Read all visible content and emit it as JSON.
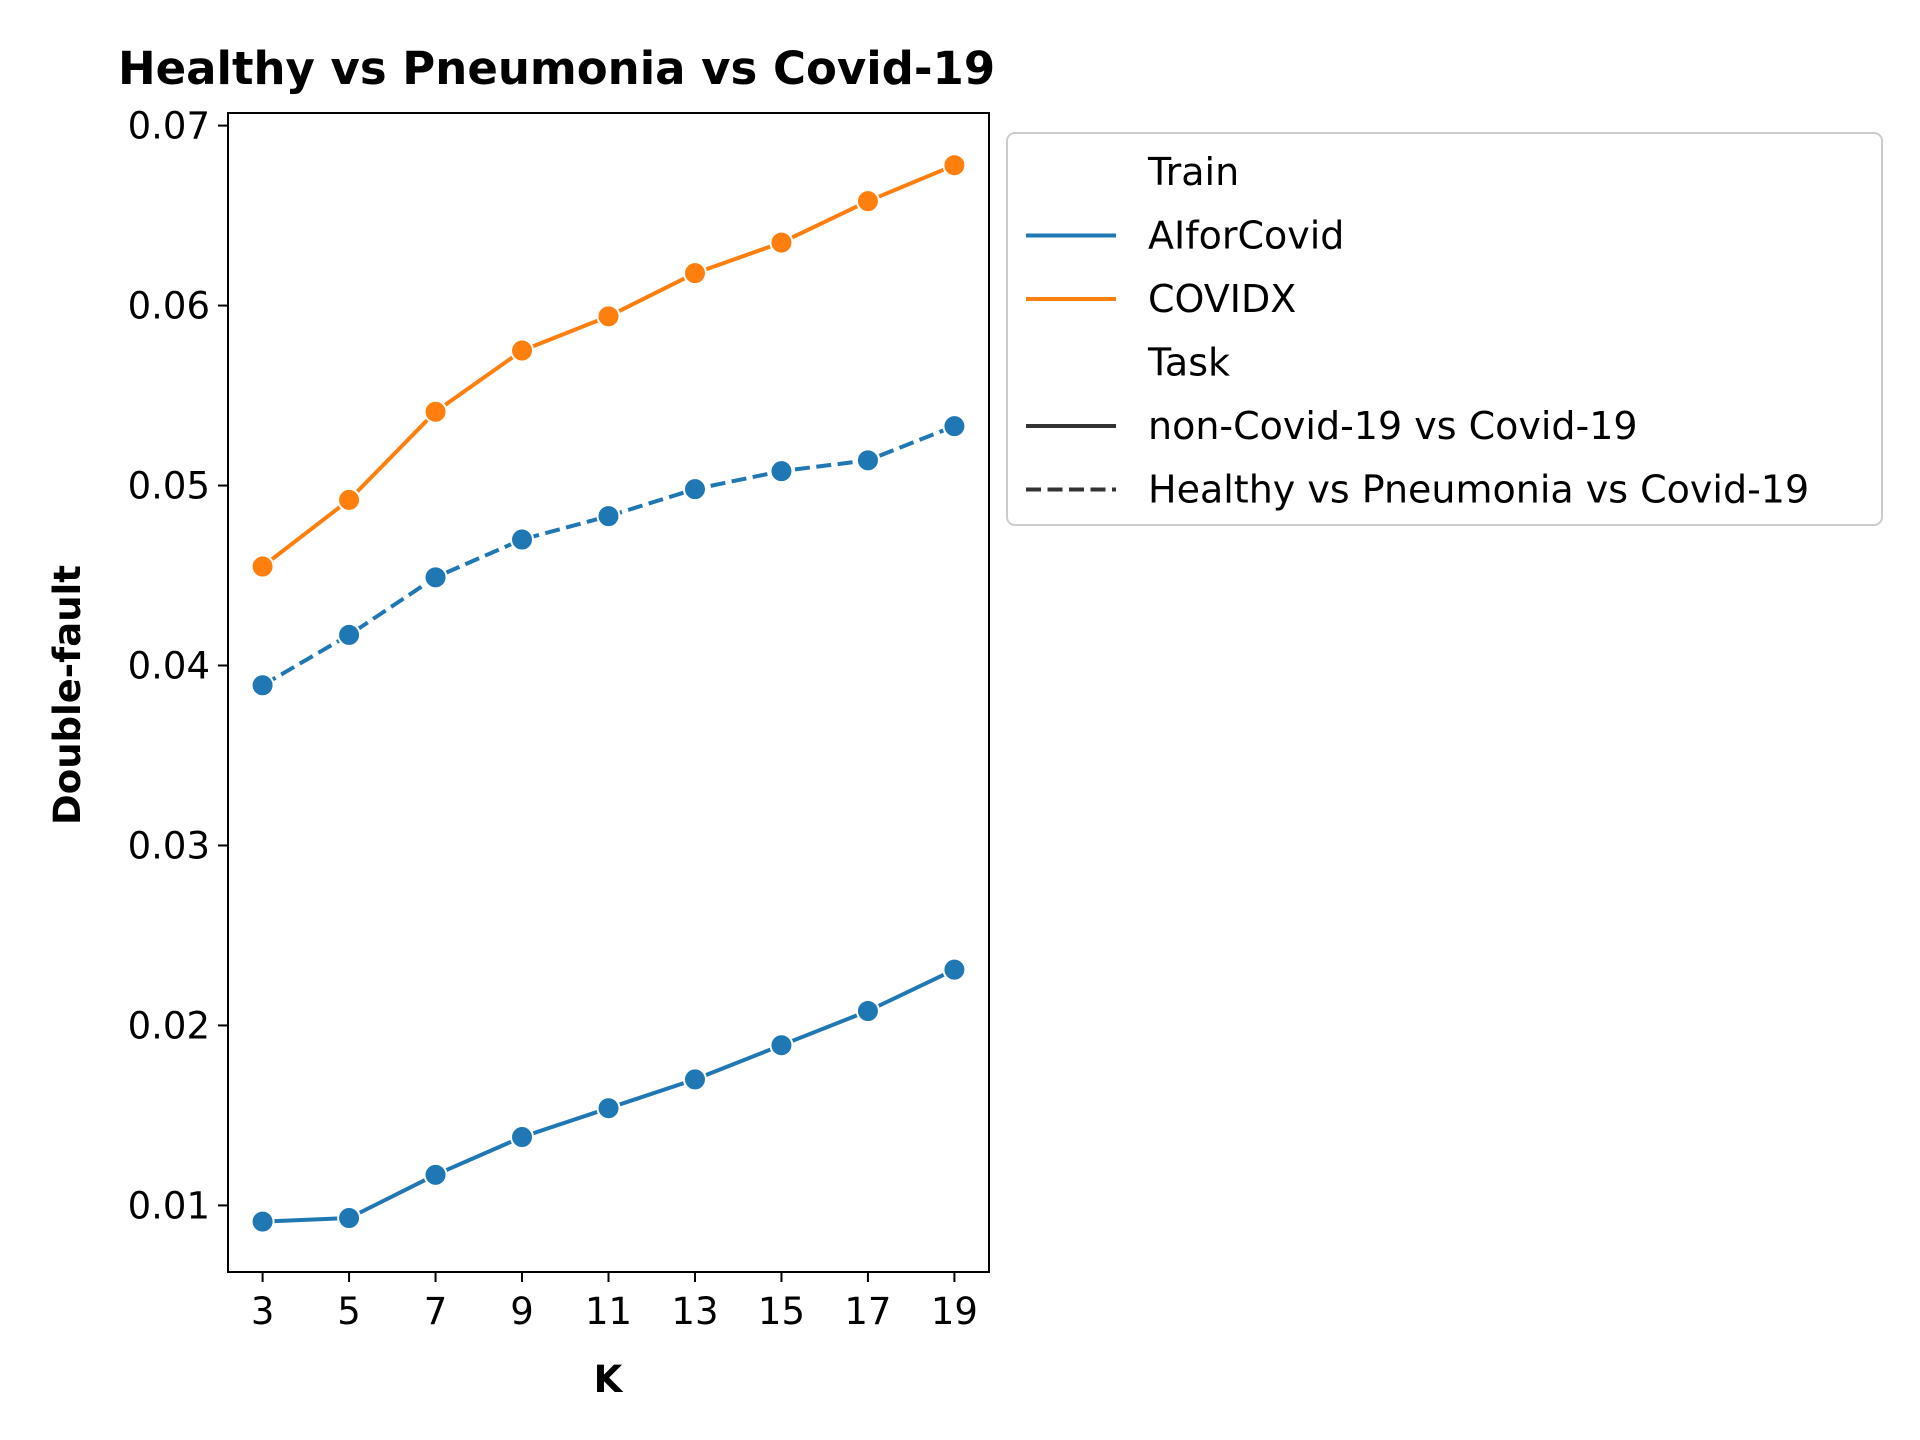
{
  "chart_data": {
    "type": "line",
    "title": "Healthy vs Pneumonia vs Covid-19",
    "xlabel": "K",
    "ylabel": "Double-fault",
    "x": [
      3,
      5,
      7,
      9,
      11,
      13,
      15,
      17,
      19
    ],
    "xticks": [
      "3",
      "5",
      "7",
      "9",
      "11",
      "13",
      "15",
      "17",
      "19"
    ],
    "yticks": [
      "0.01",
      "0.02",
      "0.03",
      "0.04",
      "0.05",
      "0.06",
      "0.07"
    ],
    "ytick_values": [
      0.01,
      0.02,
      0.03,
      0.04,
      0.05,
      0.06,
      0.07
    ],
    "xlim": [
      2.2,
      19.8
    ],
    "ylim": [
      0.0063,
      0.0707
    ],
    "grid": false,
    "legend_position": "outside-right",
    "legend": {
      "groups": [
        {
          "heading": "Train",
          "entries": [
            {
              "label": "AIforCovid",
              "color": "#1f77b4",
              "style": "solid"
            },
            {
              "label": "COVIDX",
              "color": "#ff7f0e",
              "style": "solid"
            }
          ]
        },
        {
          "heading": "Task",
          "entries": [
            {
              "label": "non-Covid-19 vs Covid-19",
              "color": "#333333",
              "style": "solid"
            },
            {
              "label": "Healthy vs Pneumonia vs Covid-19",
              "color": "#333333",
              "style": "dashed"
            }
          ]
        }
      ]
    },
    "series": [
      {
        "train": "COVIDX",
        "task": "non-Covid-19 vs Covid-19",
        "color": "#ff7f0e",
        "style": "solid",
        "values": [
          0.0455,
          0.0492,
          0.0541,
          0.0575,
          0.0594,
          0.0618,
          0.0635,
          0.0658,
          0.0678
        ]
      },
      {
        "train": "AIforCovid",
        "task": "Healthy vs Pneumonia vs Covid-19",
        "color": "#1f77b4",
        "style": "dashed",
        "values": [
          0.0389,
          0.0417,
          0.0449,
          0.047,
          0.0483,
          0.0498,
          0.0508,
          0.0514,
          0.0533
        ]
      },
      {
        "train": "AIforCovid",
        "task": "non-Covid-19 vs Covid-19",
        "color": "#1f77b4",
        "style": "solid",
        "values": [
          0.0091,
          0.0093,
          0.0117,
          0.0138,
          0.0154,
          0.017,
          0.0189,
          0.0208,
          0.0231
        ]
      }
    ]
  }
}
